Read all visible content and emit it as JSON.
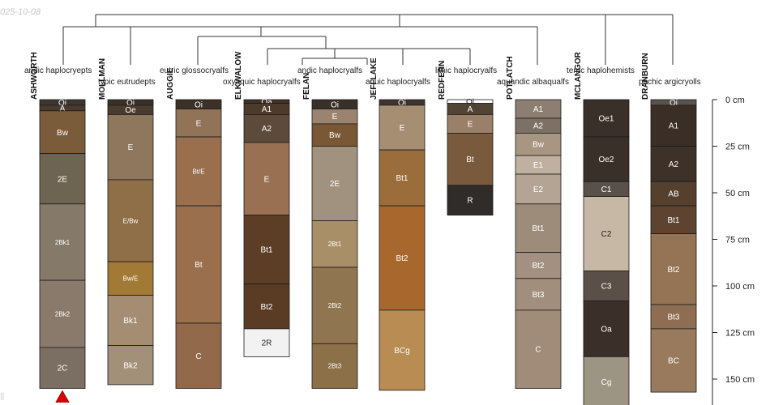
{
  "date_label": "025-10-08",
  "corner_mark": "||",
  "depth_unit": "cm",
  "depth_ticks": [
    0,
    25,
    50,
    75,
    100,
    125,
    150
  ],
  "taxa": [
    {
      "label": "andic haplocryepts"
    },
    {
      "label": "typic eutrudepts"
    },
    {
      "label": "eutric glossocryalfs"
    },
    {
      "label": "oxyaquic haplocryalfs"
    },
    {
      "label": "andic haplocryalfs"
    },
    {
      "label": "aquic haplocryalfs"
    },
    {
      "label": "lithic haplocryalfs"
    },
    {
      "label": "aquandic albaqualfs"
    },
    {
      "label": "terric haplohemists"
    },
    {
      "label": "pachic argicryolls"
    }
  ],
  "profiles": [
    {
      "name": "ASHWORTH",
      "flag": "red-triangle-marker",
      "horizons": [
        {
          "name": "Oi",
          "top": 0,
          "bottom": 3,
          "color": "#3d3530"
        },
        {
          "name": "A",
          "top": 3,
          "bottom": 6,
          "color": "#4a3a2e"
        },
        {
          "name": "Bw",
          "top": 6,
          "bottom": 29,
          "color": "#7a5c3a"
        },
        {
          "name": "2E",
          "top": 29,
          "bottom": 56,
          "color": "#6e6452"
        },
        {
          "name": "2Bk1",
          "top": 56,
          "bottom": 97,
          "color": "#857a69"
        },
        {
          "name": "2Bk2",
          "top": 97,
          "bottom": 133,
          "color": "#8a7a6c"
        },
        {
          "name": "2C",
          "top": 133,
          "bottom": 155,
          "color": "#7b6e62"
        }
      ]
    },
    {
      "name": "MOLLMAN",
      "horizons": [
        {
          "name": "Oi",
          "top": 0,
          "bottom": 3,
          "color": "#3b3027"
        },
        {
          "name": "Oe",
          "top": 3,
          "bottom": 8,
          "color": "#4a3b2f"
        },
        {
          "name": "E",
          "top": 8,
          "bottom": 43,
          "color": "#8e775c"
        },
        {
          "name": "E/Bw",
          "top": 43,
          "bottom": 87,
          "color": "#8f6f47"
        },
        {
          "name": "Bw/E",
          "top": 87,
          "bottom": 105,
          "color": "#a37a35"
        },
        {
          "name": "Bk1",
          "top": 105,
          "bottom": 132,
          "color": "#a58d74"
        },
        {
          "name": "Bk2",
          "top": 132,
          "bottom": 153,
          "color": "#a39078"
        }
      ]
    },
    {
      "name": "AUGGIE",
      "horizons": [
        {
          "name": "Oi",
          "top": 0,
          "bottom": 5,
          "color": "#3b3128"
        },
        {
          "name": "E",
          "top": 5,
          "bottom": 20,
          "color": "#917357"
        },
        {
          "name": "Bt/E",
          "top": 20,
          "bottom": 57,
          "color": "#9a6f4e"
        },
        {
          "name": "Bt",
          "top": 57,
          "bottom": 120,
          "color": "#9a6f4e"
        },
        {
          "name": "C",
          "top": 120,
          "bottom": 155,
          "color": "#93694b"
        }
      ]
    },
    {
      "name": "ELKWALOW",
      "horizons": [
        {
          "name": "Oa",
          "top": 0,
          "bottom": 2,
          "color": "#3f3228"
        },
        {
          "name": "A1",
          "top": 2,
          "bottom": 8,
          "color": "#4c3a2a"
        },
        {
          "name": "A2",
          "top": 8,
          "bottom": 23,
          "color": "#5c4a3a"
        },
        {
          "name": "E",
          "top": 23,
          "bottom": 62,
          "color": "#9a7052"
        },
        {
          "name": "Bt1",
          "top": 62,
          "bottom": 99,
          "color": "#5c3d26"
        },
        {
          "name": "Bt2",
          "top": 99,
          "bottom": 123,
          "color": "#5a3c25"
        },
        {
          "name": "2R",
          "top": 123,
          "bottom": 138,
          "color": "#f2f2f2"
        }
      ]
    },
    {
      "name": "FELAN",
      "horizons": [
        {
          "name": "Oi",
          "top": 0,
          "bottom": 5,
          "color": "#3a302a"
        },
        {
          "name": "E",
          "top": 5,
          "bottom": 13,
          "color": "#9a8470"
        },
        {
          "name": "Bw",
          "top": 13,
          "bottom": 25,
          "color": "#7a5835"
        },
        {
          "name": "2E",
          "top": 25,
          "bottom": 65,
          "color": "#a0927e"
        },
        {
          "name": "2Bt1",
          "top": 65,
          "bottom": 90,
          "color": "#a88f68"
        },
        {
          "name": "2Bt2",
          "top": 90,
          "bottom": 131,
          "color": "#8f7550"
        },
        {
          "name": "2Bt3",
          "top": 131,
          "bottom": 155,
          "color": "#8c7048"
        }
      ]
    },
    {
      "name": "JEFFLAKE",
      "horizons": [
        {
          "name": "Oi",
          "top": 0,
          "bottom": 3,
          "color": "#3e342c"
        },
        {
          "name": "E",
          "top": 3,
          "bottom": 27,
          "color": "#a68e73"
        },
        {
          "name": "Bt1",
          "top": 27,
          "bottom": 57,
          "color": "#9a6d3a"
        },
        {
          "name": "Bt2",
          "top": 57,
          "bottom": 113,
          "color": "#a8672c"
        },
        {
          "name": "BCg",
          "top": 113,
          "bottom": 156,
          "color": "#b88c52"
        }
      ]
    },
    {
      "name": "REDFERN",
      "horizons": [
        {
          "name": "Oi",
          "top": 0,
          "bottom": 2,
          "color": "#ffffff"
        },
        {
          "name": "A",
          "top": 2,
          "bottom": 8,
          "color": "#524434"
        },
        {
          "name": "E",
          "top": 8,
          "bottom": 18,
          "color": "#9a8068"
        },
        {
          "name": "Bt",
          "top": 18,
          "bottom": 46,
          "color": "#7a5a3c"
        },
        {
          "name": "R",
          "top": 46,
          "bottom": 62,
          "color": "#2f2c29"
        }
      ]
    },
    {
      "name": "POTLATCH",
      "horizons": [
        {
          "name": "A1",
          "top": 0,
          "bottom": 10,
          "color": "#8c7e70"
        },
        {
          "name": "A2",
          "top": 10,
          "bottom": 18,
          "color": "#7d7064"
        },
        {
          "name": "Bw",
          "top": 18,
          "bottom": 30,
          "color": "#a89682"
        },
        {
          "name": "E1",
          "top": 30,
          "bottom": 40,
          "color": "#c0b0a0"
        },
        {
          "name": "E2",
          "top": 40,
          "bottom": 56,
          "color": "#b4a494"
        },
        {
          "name": "Bt1",
          "top": 56,
          "bottom": 82,
          "color": "#9e8c7a"
        },
        {
          "name": "Bt2",
          "top": 82,
          "bottom": 96,
          "color": "#a39080"
        },
        {
          "name": "Bt3",
          "top": 96,
          "bottom": 113,
          "color": "#a28e7c"
        },
        {
          "name": "C",
          "top": 113,
          "bottom": 155,
          "color": "#a08c78"
        }
      ]
    },
    {
      "name": "MCLANGOR",
      "horizons": [
        {
          "name": "Oe1",
          "top": 0,
          "bottom": 20,
          "color": "#3a302a"
        },
        {
          "name": "Oe2",
          "top": 20,
          "bottom": 44,
          "color": "#3a302a"
        },
        {
          "name": "C1",
          "top": 44,
          "bottom": 52,
          "color": "#595049"
        },
        {
          "name": "C2",
          "top": 52,
          "bottom": 92,
          "color": "#c7b7a5"
        },
        {
          "name": "C3",
          "top": 92,
          "bottom": 108,
          "color": "#5a5048"
        },
        {
          "name": "Oa",
          "top": 108,
          "bottom": 138,
          "color": "#3a3029"
        },
        {
          "name": "Cg",
          "top": 138,
          "bottom": 165,
          "color": "#9c9584"
        }
      ]
    },
    {
      "name": "DRANBURN",
      "horizons": [
        {
          "name": "Oi",
          "top": 0,
          "bottom": 3,
          "color": "#5a534c"
        },
        {
          "name": "A1",
          "top": 3,
          "bottom": 25,
          "color": "#3a2e26"
        },
        {
          "name": "A2",
          "top": 25,
          "bottom": 44,
          "color": "#3d3128"
        },
        {
          "name": "AB",
          "top": 44,
          "bottom": 57,
          "color": "#55402d"
        },
        {
          "name": "Bt1",
          "top": 57,
          "bottom": 72,
          "color": "#5e4430"
        },
        {
          "name": "Bt2",
          "top": 72,
          "bottom": 110,
          "color": "#957355"
        },
        {
          "name": "Bt3",
          "top": 110,
          "bottom": 123,
          "color": "#8f6d52"
        },
        {
          "name": "BC",
          "top": 123,
          "bottom": 157,
          "color": "#9a7a5c"
        }
      ]
    }
  ]
}
